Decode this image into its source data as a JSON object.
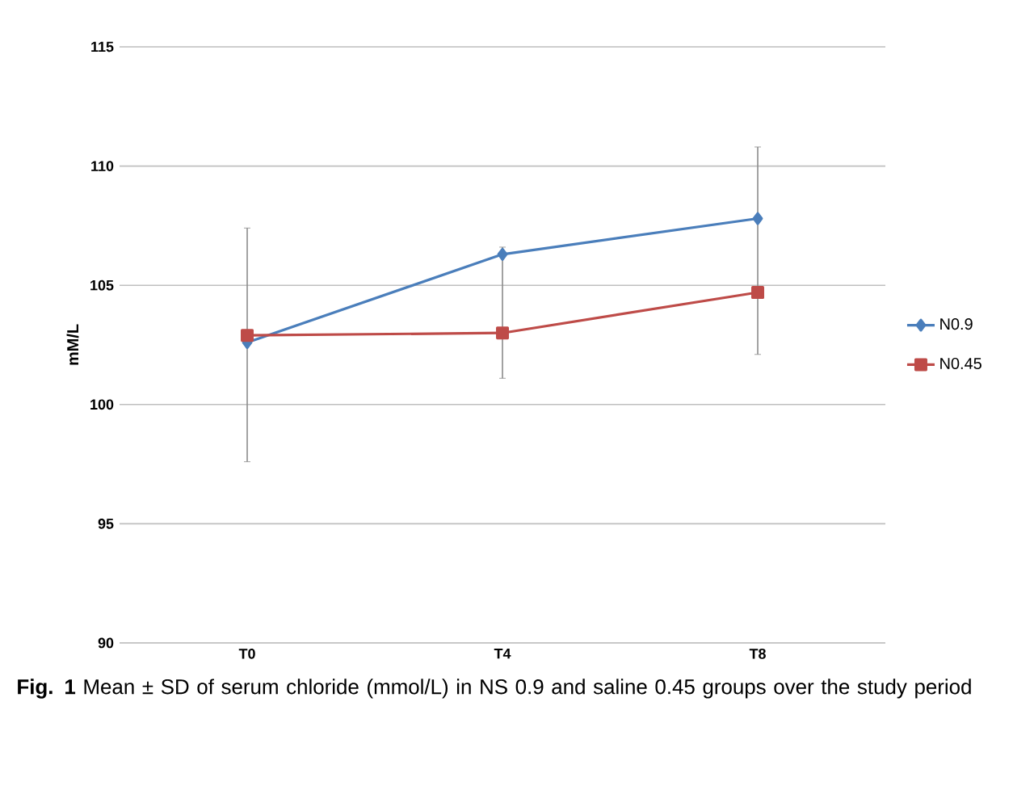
{
  "chart_data": {
    "type": "line",
    "ylabel": "mM/L",
    "categories": [
      "T0",
      "T4",
      "T8"
    ],
    "series": [
      {
        "name": "N0.9",
        "color": "#4a7ebb",
        "marker": "diamond",
        "values": [
          102.6,
          106.3,
          107.8
        ],
        "errors": [
          [
            97.6,
            107.4
          ],
          [
            101.1,
            106.6
          ],
          [
            102.1,
            110.8
          ]
        ]
      },
      {
        "name": "N0.45",
        "color": "#be4b48",
        "marker": "square",
        "values": [
          102.9,
          103.0,
          104.7
        ]
      }
    ],
    "ylim": [
      90,
      115
    ],
    "yticks": [
      90,
      95,
      100,
      105,
      110,
      115
    ],
    "grid": "y",
    "legend": "right",
    "annotations": [
      "**Fig. 1** Mean ± SD of serum chloride (mmol/L) in NS 0.9 and saline 0.45 groups over the study period"
    ]
  }
}
